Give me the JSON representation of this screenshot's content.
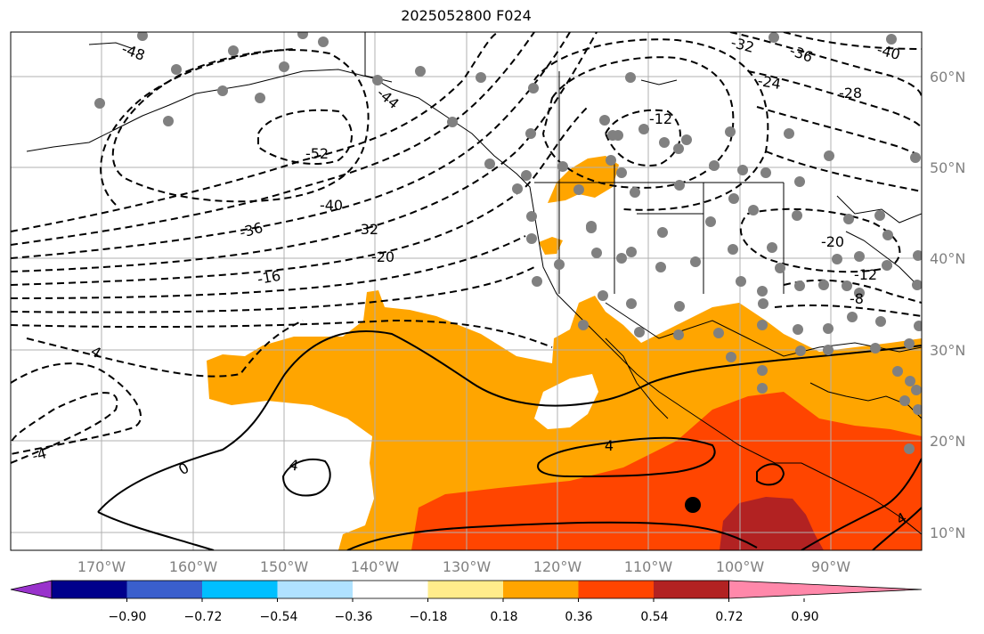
{
  "title": "2025052800 F024",
  "lat_labels": [
    "60°N",
    "50°N",
    "40°N",
    "30°N",
    "20°N",
    "10°N"
  ],
  "lon_labels": [
    "170°W",
    "160°W",
    "150°W",
    "140°W",
    "130°W",
    "120°W",
    "110°W",
    "100°W",
    "90°W"
  ],
  "colorbar": {
    "ticks": [
      "−0.90",
      "−0.72",
      "−0.54",
      "−0.36",
      "−0.18",
      "0.18",
      "0.36",
      "0.54",
      "0.72",
      "0.90"
    ],
    "colors": [
      "#9932cc",
      "#00008b",
      "#3a5fcd",
      "#00bfff",
      "#b0e2ff",
      "#ffffff",
      "#ffec8b",
      "#ffa500",
      "#ff4500",
      "#b22222",
      "#ff88aa"
    ]
  },
  "contour_labels": [
    {
      "text": "-48"
    },
    {
      "text": "-44"
    },
    {
      "text": "-52"
    },
    {
      "text": "-40"
    },
    {
      "text": "-36"
    },
    {
      "text": "-32"
    },
    {
      "text": "-20"
    },
    {
      "text": "-16"
    },
    {
      "text": "4"
    },
    {
      "text": "-4"
    },
    {
      "text": "0"
    },
    {
      "text": "4"
    },
    {
      "text": "4"
    },
    {
      "text": "-12"
    },
    {
      "text": "-32"
    },
    {
      "text": "-36"
    },
    {
      "text": "-40"
    },
    {
      "text": "-24"
    },
    {
      "text": "-28"
    },
    {
      "text": "-20"
    },
    {
      "text": "-12"
    },
    {
      "text": "-8"
    },
    {
      "text": "4"
    }
  ],
  "colors": {
    "orange": "#ffa500",
    "red_orange": "#ff4500",
    "dark_red": "#b22222",
    "station": "#808080"
  }
}
